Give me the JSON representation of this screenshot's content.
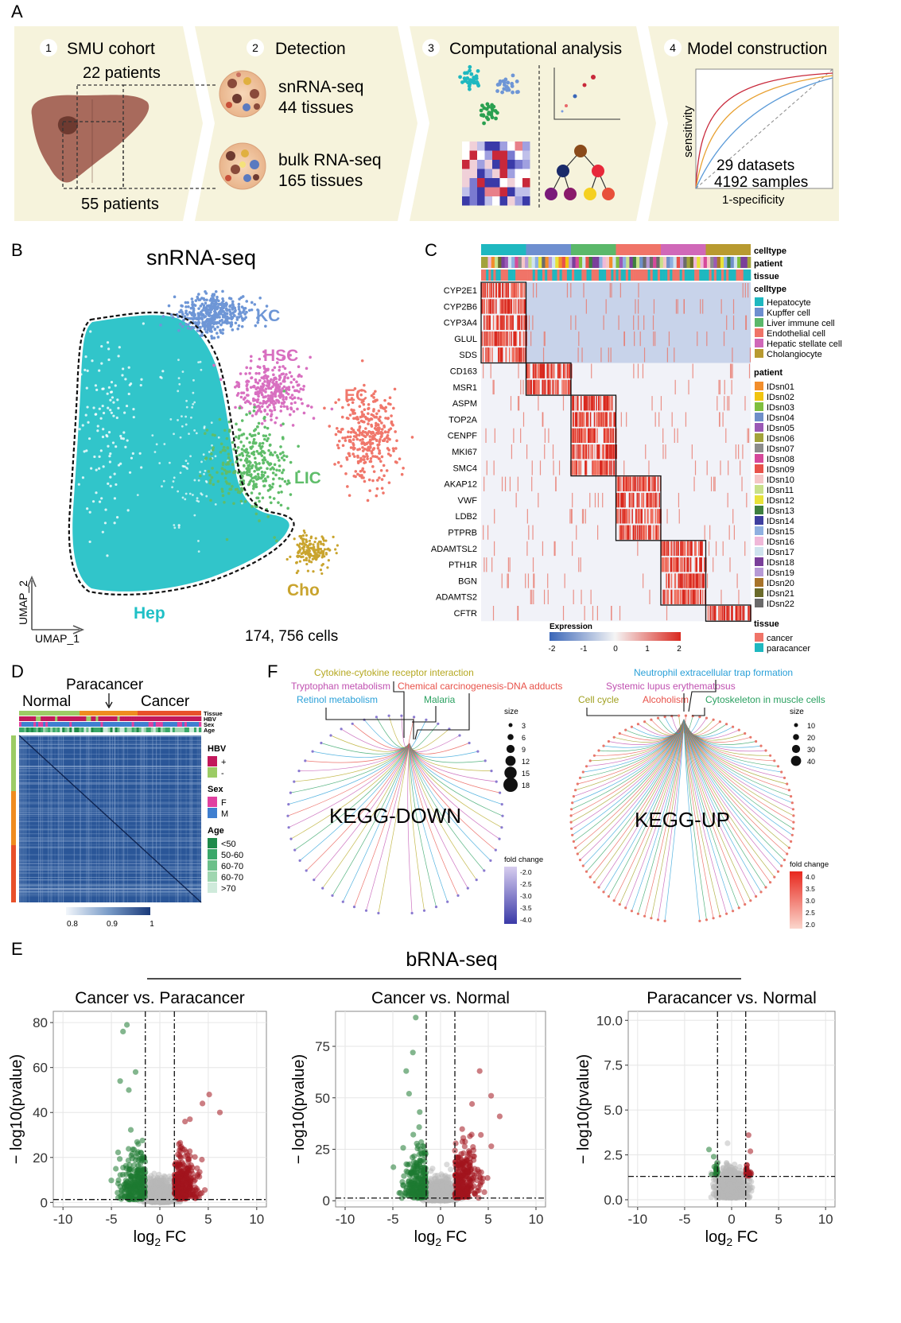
{
  "panels": {
    "a": "A",
    "b": "B",
    "c": "C",
    "d": "D",
    "e": "E",
    "f": "F"
  },
  "workflow": {
    "steps": [
      {
        "num": "1",
        "title": "SMU cohort"
      },
      {
        "num": "2",
        "title": "Detection"
      },
      {
        "num": "3",
        "title": "Computational analysis"
      },
      {
        "num": "4",
        "title": "Model construction"
      }
    ],
    "cohort_top": "22 patients",
    "cohort_bottom": "55 patients",
    "sn_line1": "snRNA-seq",
    "sn_line2": "44 tissues",
    "bulk_line1": "bulk RNA-seq",
    "bulk_line2": "165 tissues",
    "roc_ylabel": "sensitivity",
    "roc_xlabel": "1-specificity",
    "roc_line1": "29 datasets",
    "roc_line2": "4192 samples",
    "colors": {
      "band": "#f6f3dc",
      "liver": "#a86a5c",
      "tumor": "#6e3a30"
    }
  },
  "umap": {
    "title": "snRNA-seq",
    "xlabel": "UMAP_1",
    "ylabel": "UMAP_2",
    "cells": "174, 756 cells",
    "clusters": [
      {
        "label": "KC",
        "color": "#6e96d6"
      },
      {
        "label": "HSC",
        "color": "#d86fc0"
      },
      {
        "label": "EC",
        "color": "#f0776b"
      },
      {
        "label": "LIC",
        "color": "#5fbd6a"
      },
      {
        "label": "Cho",
        "color": "#c9a42e"
      },
      {
        "label": "Hep",
        "color": "#1fc0c6"
      }
    ]
  },
  "heatmap_c": {
    "bars": [
      "celltype",
      "patient",
      "tissue"
    ],
    "genes": [
      "CYP2E1",
      "CYP2B6",
      "CYP3A4",
      "GLUL",
      "SDS",
      "CD163",
      "MSR1",
      "ASPM",
      "TOP2A",
      "CENPF",
      "MKI67",
      "SMC4",
      "AKAP12",
      "VWF",
      "LDB2",
      "PTPRB",
      "ADAMTSL2",
      "PTH1R",
      "BGN",
      "ADAMTS2",
      "CFTR"
    ],
    "celltype_title": "celltype",
    "celltypes": [
      {
        "name": "Hepatocyte",
        "color": "#1fb8c0"
      },
      {
        "name": "Kupffer cell",
        "color": "#6e8fd0"
      },
      {
        "name": "Liver immune cell",
        "color": "#5bb86a"
      },
      {
        "name": "Endothelial cell",
        "color": "#f07468"
      },
      {
        "name": "Hepatic stellate cell",
        "color": "#d068b8"
      },
      {
        "name": "Cholangiocyte",
        "color": "#b89a30"
      }
    ],
    "patient_title": "patient",
    "patients": [
      {
        "name": "IDsn01",
        "color": "#f28e2b"
      },
      {
        "name": "IDsn02",
        "color": "#f1c40f"
      },
      {
        "name": "IDsn03",
        "color": "#7fbf3f"
      },
      {
        "name": "IDsn04",
        "color": "#6f8fc9"
      },
      {
        "name": "IDsn05",
        "color": "#9b59b6"
      },
      {
        "name": "IDsn06",
        "color": "#a3a33b"
      },
      {
        "name": "IDsn07",
        "color": "#8c8c8c"
      },
      {
        "name": "IDsn08",
        "color": "#d6499a"
      },
      {
        "name": "IDsn09",
        "color": "#e8524a"
      },
      {
        "name": "IDsn10",
        "color": "#f5c6c6"
      },
      {
        "name": "IDsn11",
        "color": "#c8e08a"
      },
      {
        "name": "IDsn12",
        "color": "#e8e23a"
      },
      {
        "name": "IDsn13",
        "color": "#3f7f3f"
      },
      {
        "name": "IDsn14",
        "color": "#3f3f9f"
      },
      {
        "name": "IDsn15",
        "color": "#8fb0e0"
      },
      {
        "name": "IDsn16",
        "color": "#f0b8d8"
      },
      {
        "name": "IDsn17",
        "color": "#cfe3ee"
      },
      {
        "name": "IDsn18",
        "color": "#7a3f9a"
      },
      {
        "name": "IDsn19",
        "color": "#b79ad6"
      },
      {
        "name": "IDsn20",
        "color": "#a8742a"
      },
      {
        "name": "IDsn21",
        "color": "#6b6b2a"
      },
      {
        "name": "IDsn22",
        "color": "#6b6b6b"
      }
    ],
    "tissue_title": "tissue",
    "tissues": [
      {
        "name": "cancer",
        "color": "#f07468"
      },
      {
        "name": "paracancer",
        "color": "#1fb8c0"
      }
    ],
    "expr_title": "Expression",
    "expr_ticks": [
      "-2",
      "-1",
      "0",
      "1",
      "2"
    ]
  },
  "corr_d": {
    "labels": {
      "normal": "Normal",
      "paracancer": "Paracancer",
      "cancer": "Cancer"
    },
    "tracks": [
      "Tissue",
      "HBV",
      "Sex",
      "Age"
    ],
    "legend": {
      "hbv_title": "HBV",
      "hbv": [
        {
          "name": "+",
          "color": "#c2185b"
        },
        {
          "name": "-",
          "color": "#9ccc65"
        }
      ],
      "sex_title": "Sex",
      "sex": [
        {
          "name": "F",
          "color": "#e040a0"
        },
        {
          "name": "M",
          "color": "#3f7fd0"
        }
      ],
      "age_title": "Age",
      "age": [
        {
          "name": "<50",
          "color": "#1e8a4a"
        },
        {
          "name": "50-60",
          "color": "#3aa86a"
        },
        {
          "name": "60-70",
          "color": "#6cc08a"
        },
        {
          "name": "60-70",
          "color": "#9fd6b0"
        },
        {
          "name": ">70",
          "color": "#cfeadb"
        }
      ]
    },
    "scale_ticks": [
      "0.8",
      "0.9",
      "1"
    ]
  },
  "kegg_f": {
    "down": {
      "center": "KEGG-DOWN",
      "terms": [
        {
          "name": "Cytokine-cytokine receptor interaction",
          "color": "#b5a820"
        },
        {
          "name": "Tryptophan metabolism",
          "color": "#c050b0"
        },
        {
          "name": "Chemical carcinogenesis-DNA adducts",
          "color": "#e8524a"
        },
        {
          "name": "Retinol metabolism",
          "color": "#2aa0d8"
        },
        {
          "name": "Malaria",
          "color": "#2aa060"
        }
      ],
      "size_title": "size",
      "sizes": [
        "3",
        "6",
        "9",
        "12",
        "15",
        "18"
      ],
      "fc_title": "fold change",
      "fc_ticks": [
        "-2.0",
        "-2.5",
        "-3.0",
        "-3.5",
        "-4.0"
      ]
    },
    "up": {
      "center": "KEGG-UP",
      "terms": [
        {
          "name": "Neutrophil extracellular trap formation",
          "color": "#2aa0d8"
        },
        {
          "name": "Systemic lupus erythematosus",
          "color": "#c050b0"
        },
        {
          "name": "Cell cycle",
          "color": "#a0a020"
        },
        {
          "name": "Alcoholism",
          "color": "#e8524a"
        },
        {
          "name": "Cytoskeleton in muscle cells",
          "color": "#2aa060"
        }
      ],
      "size_title": "size",
      "sizes": [
        "10",
        "20",
        "30",
        "40"
      ],
      "fc_title": "fold change",
      "fc_ticks": [
        "4.0",
        "3.5",
        "3.0",
        "2.5",
        "2.0"
      ]
    }
  },
  "volcano_e": {
    "title": "bRNA-seq",
    "xlabel_base": "log",
    "xlabel_sub": "2",
    "xlabel_tail": " FC",
    "ylabel": "− log10(pvalue)",
    "xticks": [
      "-10",
      "-5",
      "0",
      "5",
      "10"
    ],
    "colors": {
      "down": "#1e7a32",
      "up": "#a3141e",
      "ns": "#b8b8b8"
    }
  },
  "chart_data": [
    {
      "type": "scatter",
      "title": "Cancer vs. Paracancer",
      "xlabel": "log2 FC",
      "ylabel": "− log10(pvalue)",
      "xlim": [
        -11,
        11
      ],
      "ylim": [
        -2,
        85
      ],
      "yticks": [
        "0",
        "20",
        "40",
        "60",
        "80"
      ],
      "thresholds": {
        "fc": [
          -1.5,
          1.5
        ],
        "p": 1.3
      },
      "highlight": {
        "down": [
          [
            -3.8,
            76
          ],
          [
            -3.4,
            79
          ],
          [
            -2.5,
            58
          ],
          [
            -4.1,
            54
          ],
          [
            -3.2,
            50
          ]
        ],
        "up": [
          [
            5.1,
            48
          ],
          [
            4.4,
            44
          ],
          [
            6.2,
            40
          ],
          [
            3.1,
            37
          ],
          [
            2.6,
            36
          ]
        ]
      }
    },
    {
      "type": "scatter",
      "title": "Cancer vs. Normal",
      "xlabel": "log2 FC",
      "ylabel": "− log10(pvalue)",
      "xlim": [
        -11,
        11
      ],
      "ylim": [
        -3,
        92
      ],
      "yticks": [
        "0",
        "25",
        "50",
        "75"
      ],
      "thresholds": {
        "fc": [
          -1.5,
          1.5
        ],
        "p": 1.3
      },
      "highlight": {
        "down": [
          [
            -2.6,
            89
          ],
          [
            -2.9,
            72
          ],
          [
            -3.6,
            63
          ],
          [
            -3.3,
            52
          ]
        ],
        "up": [
          [
            4.1,
            63
          ],
          [
            5.3,
            51
          ],
          [
            6.2,
            41
          ],
          [
            3.3,
            47
          ]
        ]
      }
    },
    {
      "type": "scatter",
      "title": "Paracancer vs. Normal",
      "xlabel": "log2 FC",
      "ylabel": "− log10(pvalue)",
      "xlim": [
        -11,
        11
      ],
      "ylim": [
        -0.4,
        10.5
      ],
      "yticks": [
        "0.0",
        "2.5",
        "5.0",
        "7.5",
        "10.0"
      ],
      "thresholds": {
        "fc": [
          -1.5,
          1.5
        ],
        "p": 1.3
      },
      "highlight": {
        "down": [
          [
            -2.4,
            2.8
          ],
          [
            -1.9,
            2.4
          ]
        ],
        "up": [
          [
            1.8,
            3.6
          ],
          [
            2.0,
            2.7
          ]
        ]
      }
    }
  ]
}
